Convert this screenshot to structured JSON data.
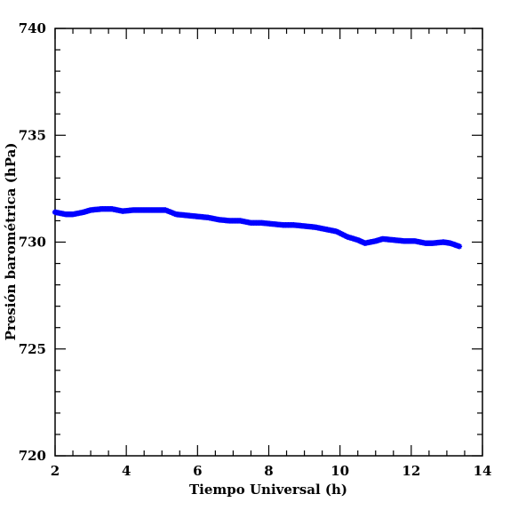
{
  "chart_data": {
    "type": "scatter",
    "title": "",
    "xlabel": "Tiempo Universal (h)",
    "ylabel": "Presión barométrica (hPa)",
    "xlim": [
      2,
      14
    ],
    "ylim": [
      720,
      740
    ],
    "xticks": [
      2,
      4,
      6,
      8,
      10,
      12,
      14
    ],
    "yticks": [
      720,
      725,
      730,
      735,
      740
    ],
    "x_tick_labels": [
      "2",
      "4",
      "6",
      "8",
      "10",
      "12",
      "14"
    ],
    "y_tick_labels": [
      "720",
      "725",
      "730",
      "735",
      "740"
    ],
    "grid": false,
    "legend": false,
    "series": [
      {
        "color": "#0000ff",
        "marker": "star",
        "x": [
          2.0,
          2.3,
          2.5,
          2.8,
          3.0,
          3.3,
          3.6,
          3.9,
          4.2,
          4.5,
          4.8,
          5.1,
          5.4,
          5.7,
          6.0,
          6.3,
          6.6,
          6.9,
          7.2,
          7.5,
          7.8,
          8.1,
          8.4,
          8.7,
          9.0,
          9.3,
          9.6,
          9.9,
          10.2,
          10.5,
          10.7,
          11.0,
          11.2,
          11.5,
          11.8,
          12.1,
          12.4,
          12.6,
          12.9,
          13.1,
          13.35
        ],
        "y": [
          731.4,
          731.3,
          731.3,
          731.4,
          731.5,
          731.55,
          731.55,
          731.45,
          731.5,
          731.5,
          731.5,
          731.5,
          731.3,
          731.25,
          731.2,
          731.15,
          731.05,
          731.0,
          731.0,
          730.9,
          730.9,
          730.85,
          730.8,
          730.8,
          730.75,
          730.7,
          730.6,
          730.5,
          730.25,
          730.1,
          729.95,
          730.05,
          730.15,
          730.1,
          730.05,
          730.05,
          729.95,
          729.95,
          730.0,
          729.95,
          729.8
        ]
      }
    ]
  }
}
